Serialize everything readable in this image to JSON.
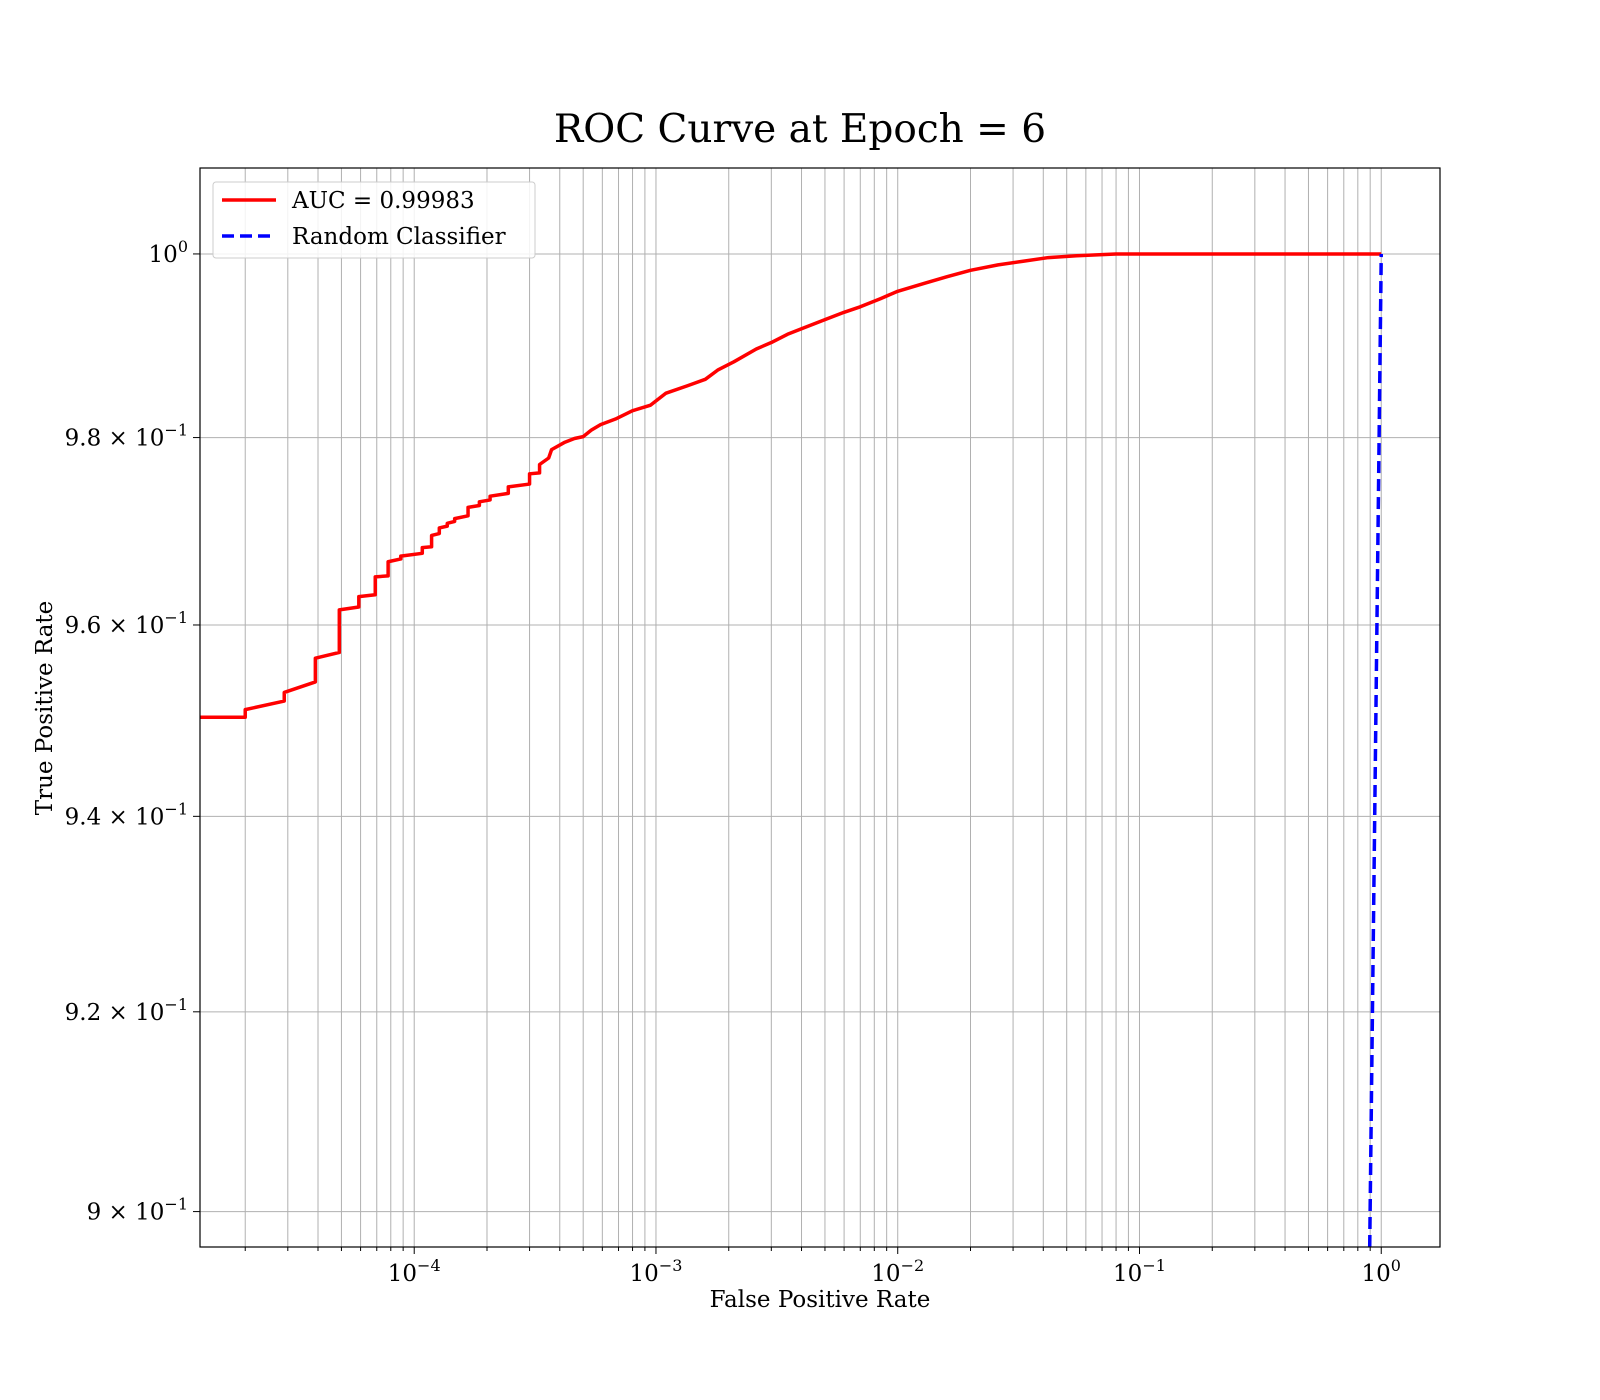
{
  "chart_data": {
    "type": "line",
    "title": "ROC Curve at Epoch = 6",
    "xlabel": "False Positive Rate",
    "ylabel": "True Positive Rate",
    "xscale": "log",
    "yscale": "log",
    "xlim": [
      1.3e-05,
      1.75
    ],
    "ylim": [
      0.8965,
      1.0095
    ],
    "grid": "both (major and minor)",
    "legend_position": "upper-left",
    "x_ticks": [
      {
        "value": 0.0001,
        "base": "10",
        "exp": "−4"
      },
      {
        "value": 0.001,
        "base": "10",
        "exp": "−3"
      },
      {
        "value": 0.01,
        "base": "10",
        "exp": "−2"
      },
      {
        "value": 0.1,
        "base": "10",
        "exp": "−1"
      },
      {
        "value": 1,
        "base": "10",
        "exp": "0"
      }
    ],
    "y_ticks": [
      {
        "value": 1.0,
        "base": "10",
        "exp": "0"
      },
      {
        "value": 0.98,
        "base": "9.8 × 10",
        "exp": "−1"
      },
      {
        "value": 0.96,
        "base": "9.6 × 10",
        "exp": "−1"
      },
      {
        "value": 0.94,
        "base": "9.4 × 10",
        "exp": "−1"
      },
      {
        "value": 0.92,
        "base": "9.2 × 10",
        "exp": "−1"
      },
      {
        "value": 0.9,
        "base": "9 × 10",
        "exp": "−1"
      }
    ],
    "series": [
      {
        "name": "AUC = 0.99983",
        "color": "#ff0000",
        "style": "solid",
        "points": [
          [
            1.3e-05,
            0.9503
          ],
          [
            2e-05,
            0.9503
          ],
          [
            2e-05,
            0.9511
          ],
          [
            2.9e-05,
            0.952
          ],
          [
            2.9e-05,
            0.9529
          ],
          [
            3.9e-05,
            0.954
          ],
          [
            3.9e-05,
            0.9565
          ],
          [
            4.9e-05,
            0.9571
          ],
          [
            4.9e-05,
            0.9616
          ],
          [
            5.9e-05,
            0.9619
          ],
          [
            5.9e-05,
            0.963
          ],
          [
            6.9e-05,
            0.9632
          ],
          [
            6.9e-05,
            0.9651
          ],
          [
            7.8e-05,
            0.9652
          ],
          [
            7.8e-05,
            0.9667
          ],
          [
            8.8e-05,
            0.967
          ],
          [
            8.8e-05,
            0.9673
          ],
          [
            0.000108,
            0.9676
          ],
          [
            0.000108,
            0.9682
          ],
          [
            0.000118,
            0.9683
          ],
          [
            0.000118,
            0.9695
          ],
          [
            0.000127,
            0.9697
          ],
          [
            0.000127,
            0.9703
          ],
          [
            0.000137,
            0.9705
          ],
          [
            0.000137,
            0.9708
          ],
          [
            0.000147,
            0.971
          ],
          [
            0.000147,
            0.9713
          ],
          [
            0.000167,
            0.9716
          ],
          [
            0.000167,
            0.9725
          ],
          [
            0.000186,
            0.9727
          ],
          [
            0.000186,
            0.9731
          ],
          [
            0.000206,
            0.9733
          ],
          [
            0.000206,
            0.9737
          ],
          [
            0.000245,
            0.974
          ],
          [
            0.000245,
            0.9747
          ],
          [
            0.0003,
            0.975
          ],
          [
            0.0003,
            0.9761
          ],
          [
            0.00033,
            0.9762
          ],
          [
            0.00033,
            0.9771
          ],
          [
            0.00036,
            0.9778
          ],
          [
            0.00037,
            0.9787
          ],
          [
            0.00042,
            0.9795
          ],
          [
            0.00046,
            0.9799
          ],
          [
            0.0005,
            0.9801
          ],
          [
            0.00054,
            0.9808
          ],
          [
            0.00059,
            0.9814
          ],
          [
            0.00068,
            0.982
          ],
          [
            0.0008,
            0.9829
          ],
          [
            0.00095,
            0.9835
          ],
          [
            0.0011,
            0.9848
          ],
          [
            0.00135,
            0.9856
          ],
          [
            0.0016,
            0.9863
          ],
          [
            0.0018,
            0.9873
          ],
          [
            0.0021,
            0.9882
          ],
          [
            0.0026,
            0.9896
          ],
          [
            0.003,
            0.9903
          ],
          [
            0.0035,
            0.9912
          ],
          [
            0.004,
            0.9918
          ],
          [
            0.005,
            0.9928
          ],
          [
            0.006,
            0.9936
          ],
          [
            0.007,
            0.9942
          ],
          [
            0.0085,
            0.9951
          ],
          [
            0.01,
            0.9959
          ],
          [
            0.013,
            0.9968
          ],
          [
            0.016,
            0.9975
          ],
          [
            0.02,
            0.9982
          ],
          [
            0.026,
            0.9988
          ],
          [
            0.033,
            0.9992
          ],
          [
            0.042,
            0.9996
          ],
          [
            0.055,
            0.9998
          ],
          [
            0.08,
            1.0
          ],
          [
            1.0,
            1.0
          ]
        ]
      },
      {
        "name": "Random Classifier",
        "color": "#0000ff",
        "style": "dashed",
        "points": [
          [
            0.896,
            0.8965
          ],
          [
            1.0,
            1.0
          ]
        ]
      }
    ]
  }
}
